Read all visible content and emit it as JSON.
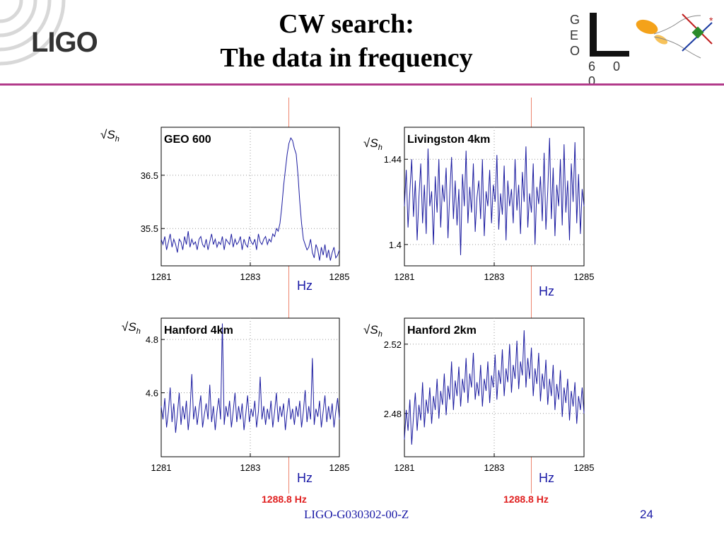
{
  "slide": {
    "title_line1": "CW search:",
    "title_line2": "The data in frequency",
    "logo_left": "LIGO",
    "logo_right_letters": [
      "G",
      "E",
      "O"
    ],
    "logo_right_digits": "6 0 0",
    "footer": "LIGO-G030302-00-Z",
    "page_number": "24",
    "marker_label_left": "1288.8 Hz",
    "marker_label_right": "1288.8 Hz",
    "colors": {
      "divider": "#b23a8a",
      "trace": "#1c1ca0",
      "marker": "#e8664a",
      "footer_text": "#1a1aa6",
      "freq_label": "#e02020"
    }
  },
  "chart_data": [
    {
      "type": "line",
      "title": "GEO 600",
      "ylabel_symbol": "√S_h",
      "xlabel": "Hz",
      "xlim": [
        1281,
        1285
      ],
      "ylim": [
        34.8,
        37.4
      ],
      "xticks": [
        "1281",
        "1283",
        "1285"
      ],
      "xtick_values": [
        1281,
        1283,
        1285
      ],
      "yticks": [
        "35.5",
        "36.5"
      ],
      "ytick_values": [
        35.5,
        36.5
      ],
      "grid": true,
      "series": [
        {
          "values": [
            35.3,
            35.2,
            35.35,
            35.1,
            35.25,
            35.4,
            35.15,
            35.3,
            35.2,
            35.05,
            35.3,
            35.25,
            35.1,
            35.35,
            35.2,
            35.45,
            35.15,
            35.3,
            35.2,
            35.25,
            35.1,
            35.3,
            35.35,
            35.2,
            35.15,
            35.3,
            35.1,
            35.25,
            35.4,
            35.2,
            35.3,
            35.15,
            35.25,
            35.2,
            35.35,
            35.1,
            35.3,
            35.25,
            35.2,
            35.4,
            35.15,
            35.3,
            35.2,
            35.25,
            35.35,
            35.1,
            35.3,
            35.2,
            35.15,
            35.35,
            35.25,
            35.2,
            35.3,
            35.1,
            35.4,
            35.25,
            35.2,
            35.3,
            35.35,
            35.2,
            35.3,
            35.25,
            35.4,
            35.35,
            35.5,
            35.45,
            35.6,
            35.9,
            36.3,
            36.6,
            36.9,
            37.1,
            37.2,
            37.15,
            37.0,
            36.9,
            36.5,
            36.0,
            35.6,
            35.3,
            35.2,
            35.1,
            35.15,
            35.3,
            35.05,
            34.95,
            35.2,
            35.1,
            34.9,
            35.15,
            35.0,
            35.2,
            34.95,
            35.1,
            34.9,
            35.05,
            35.15,
            34.95,
            35.0,
            35.1
          ]
        }
      ]
    },
    {
      "type": "line",
      "title": "Livingston 4km",
      "ylabel_symbol": "√S_h",
      "xlabel": "Hz",
      "xlim": [
        1281,
        1285
      ],
      "ylim": [
        1.39,
        1.455
      ],
      "xticks": [
        "1281",
        "1283",
        "1285"
      ],
      "xtick_values": [
        1281,
        1283,
        1285
      ],
      "yticks": [
        "1.4",
        "1.44"
      ],
      "ytick_values": [
        1.4,
        1.44
      ],
      "grid": true,
      "series": [
        {
          "values": [
            1.418,
            1.435,
            1.408,
            1.425,
            1.44,
            1.413,
            1.43,
            1.402,
            1.422,
            1.438,
            1.41,
            1.428,
            1.405,
            1.445,
            1.418,
            1.425,
            1.4,
            1.432,
            1.415,
            1.44,
            1.408,
            1.428,
            1.42,
            1.436,
            1.403,
            1.424,
            1.441,
            1.412,
            1.43,
            1.409,
            1.426,
            1.395,
            1.433,
            1.418,
            1.444,
            1.41,
            1.427,
            1.415,
            1.438,
            1.406,
            1.422,
            1.43,
            1.412,
            1.44,
            1.404,
            1.425,
            1.418,
            1.435,
            1.41,
            1.428,
            1.42,
            1.442,
            1.407,
            1.424,
            1.414,
            1.437,
            1.402,
            1.43,
            1.418,
            1.426,
            1.41,
            1.44,
            1.416,
            1.428,
            1.405,
            1.434,
            1.42,
            1.446,
            1.408,
            1.424,
            1.415,
            1.438,
            1.4,
            1.427,
            1.419,
            1.432,
            1.411,
            1.443,
            1.407,
            1.425,
            1.45,
            1.412,
            1.436,
            1.404,
            1.428,
            1.418,
            1.44,
            1.409,
            1.447,
            1.415,
            1.43,
            1.402,
            1.438,
            1.42,
            1.448,
            1.41,
            1.433,
            1.405,
            1.426,
            1.418
          ]
        }
      ]
    },
    {
      "type": "line",
      "title": "Hanford 4km",
      "ylabel_symbol": "√S_h",
      "xlabel": "Hz",
      "xlim": [
        1281,
        1285
      ],
      "ylim": [
        4.36,
        4.88
      ],
      "xticks": [
        "1281",
        "1283",
        "1285"
      ],
      "xtick_values": [
        1281,
        1283,
        1285
      ],
      "yticks": [
        "4.6",
        "4.8"
      ],
      "ytick_values": [
        4.6,
        4.8
      ],
      "grid": true,
      "series": [
        {
          "values": [
            4.55,
            4.5,
            4.58,
            4.47,
            4.53,
            4.62,
            4.49,
            4.56,
            4.45,
            4.52,
            4.6,
            4.48,
            4.55,
            4.5,
            4.57,
            4.46,
            4.53,
            4.67,
            4.5,
            4.55,
            4.48,
            4.54,
            4.59,
            4.47,
            4.52,
            4.56,
            4.5,
            4.63,
            4.49,
            4.55,
            4.46,
            4.53,
            4.58,
            4.5,
            4.86,
            4.48,
            4.55,
            4.51,
            4.57,
            4.47,
            4.53,
            4.6,
            4.49,
            4.55,
            4.5,
            4.56,
            4.46,
            4.52,
            4.59,
            4.49,
            4.54,
            4.51,
            4.57,
            4.47,
            4.53,
            4.66,
            4.5,
            4.55,
            4.48,
            4.54,
            4.5,
            4.57,
            4.47,
            4.53,
            4.6,
            4.49,
            4.55,
            4.51,
            4.56,
            4.46,
            4.53,
            4.58,
            4.5,
            4.54,
            4.48,
            4.55,
            4.51,
            4.57,
            4.47,
            4.53,
            4.61,
            4.49,
            4.55,
            4.5,
            4.73,
            4.48,
            4.54,
            4.51,
            4.57,
            4.47,
            4.53,
            4.59,
            4.49,
            4.55,
            4.5,
            4.56,
            4.47,
            4.53,
            4.58,
            4.5
          ]
        }
      ]
    },
    {
      "type": "line",
      "title": "Hanford 2km",
      "ylabel_symbol": "√S_h",
      "xlabel": "Hz",
      "xlim": [
        1281,
        1285
      ],
      "ylim": [
        2.455,
        2.535
      ],
      "xticks": [
        "1281",
        "1283",
        "1285"
      ],
      "xtick_values": [
        1281,
        1283,
        1285
      ],
      "yticks": [
        "2.48",
        "2.52"
      ],
      "ytick_values": [
        2.48,
        2.52
      ],
      "grid": true,
      "series": [
        {
          "values": [
            2.465,
            2.482,
            2.47,
            2.488,
            2.462,
            2.478,
            2.492,
            2.47,
            2.485,
            2.476,
            2.498,
            2.472,
            2.488,
            2.48,
            2.495,
            2.474,
            2.49,
            2.482,
            2.5,
            2.477,
            2.493,
            2.485,
            2.503,
            2.479,
            2.496,
            2.488,
            2.51,
            2.482,
            2.499,
            2.49,
            2.507,
            2.484,
            2.5,
            2.492,
            2.512,
            2.486,
            2.503,
            2.495,
            2.515,
            2.488,
            2.498,
            2.49,
            2.508,
            2.484,
            2.5,
            2.493,
            2.51,
            2.486,
            2.502,
            2.495,
            2.514,
            2.488,
            2.505,
            2.497,
            2.517,
            2.49,
            2.506,
            2.498,
            2.52,
            2.492,
            2.508,
            2.5,
            2.522,
            2.494,
            2.51,
            2.502,
            2.528,
            2.495,
            2.512,
            2.5,
            2.518,
            2.49,
            2.506,
            2.497,
            2.515,
            2.487,
            2.503,
            2.494,
            2.511,
            2.485,
            2.5,
            2.49,
            2.508,
            2.482,
            2.497,
            2.488,
            2.505,
            2.478,
            2.495,
            2.486,
            2.5,
            2.476,
            2.493,
            2.484,
            2.498,
            2.474,
            2.49,
            2.482,
            2.495,
            2.48
          ]
        }
      ]
    }
  ]
}
